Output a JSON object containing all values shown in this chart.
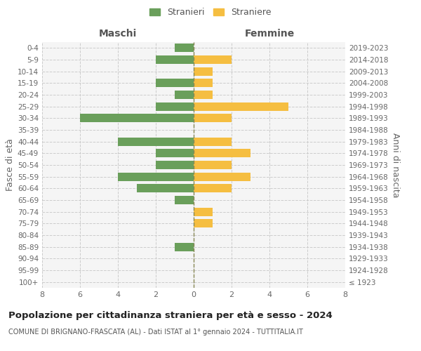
{
  "age_groups": [
    "100+",
    "95-99",
    "90-94",
    "85-89",
    "80-84",
    "75-79",
    "70-74",
    "65-69",
    "60-64",
    "55-59",
    "50-54",
    "45-49",
    "40-44",
    "35-39",
    "30-34",
    "25-29",
    "20-24",
    "15-19",
    "10-14",
    "5-9",
    "0-4"
  ],
  "birth_years": [
    "≤ 1923",
    "1924-1928",
    "1929-1933",
    "1934-1938",
    "1939-1943",
    "1944-1948",
    "1949-1953",
    "1954-1958",
    "1959-1963",
    "1964-1968",
    "1969-1973",
    "1974-1978",
    "1979-1983",
    "1984-1988",
    "1989-1993",
    "1994-1998",
    "1999-2003",
    "2004-2008",
    "2009-2013",
    "2014-2018",
    "2019-2023"
  ],
  "males": [
    0,
    0,
    0,
    1,
    0,
    0,
    0,
    1,
    3,
    4,
    2,
    2,
    4,
    0,
    6,
    2,
    1,
    2,
    0,
    2,
    1
  ],
  "females": [
    0,
    0,
    0,
    0,
    0,
    1,
    1,
    0,
    2,
    3,
    2,
    3,
    2,
    0,
    2,
    5,
    1,
    1,
    1,
    2,
    0
  ],
  "male_color": "#6a9f5b",
  "female_color": "#f5be41",
  "center_line_color": "#888855",
  "grid_color": "#cccccc",
  "title": "Popolazione per cittadinanza straniera per età e sesso - 2024",
  "subtitle": "COMUNE DI BRIGNANO-FRASCATA (AL) - Dati ISTAT al 1° gennaio 2024 - TUTTITALIA.IT",
  "ylabel_left": "Fasce di età",
  "ylabel_right": "Anni di nascita",
  "xlabel_left": "Maschi",
  "xlabel_right": "Femmine",
  "legend_stranieri": "Stranieri",
  "legend_straniere": "Straniere",
  "xlim": 8,
  "background_color": "#ffffff",
  "plot_bg_color": "#f5f5f5"
}
